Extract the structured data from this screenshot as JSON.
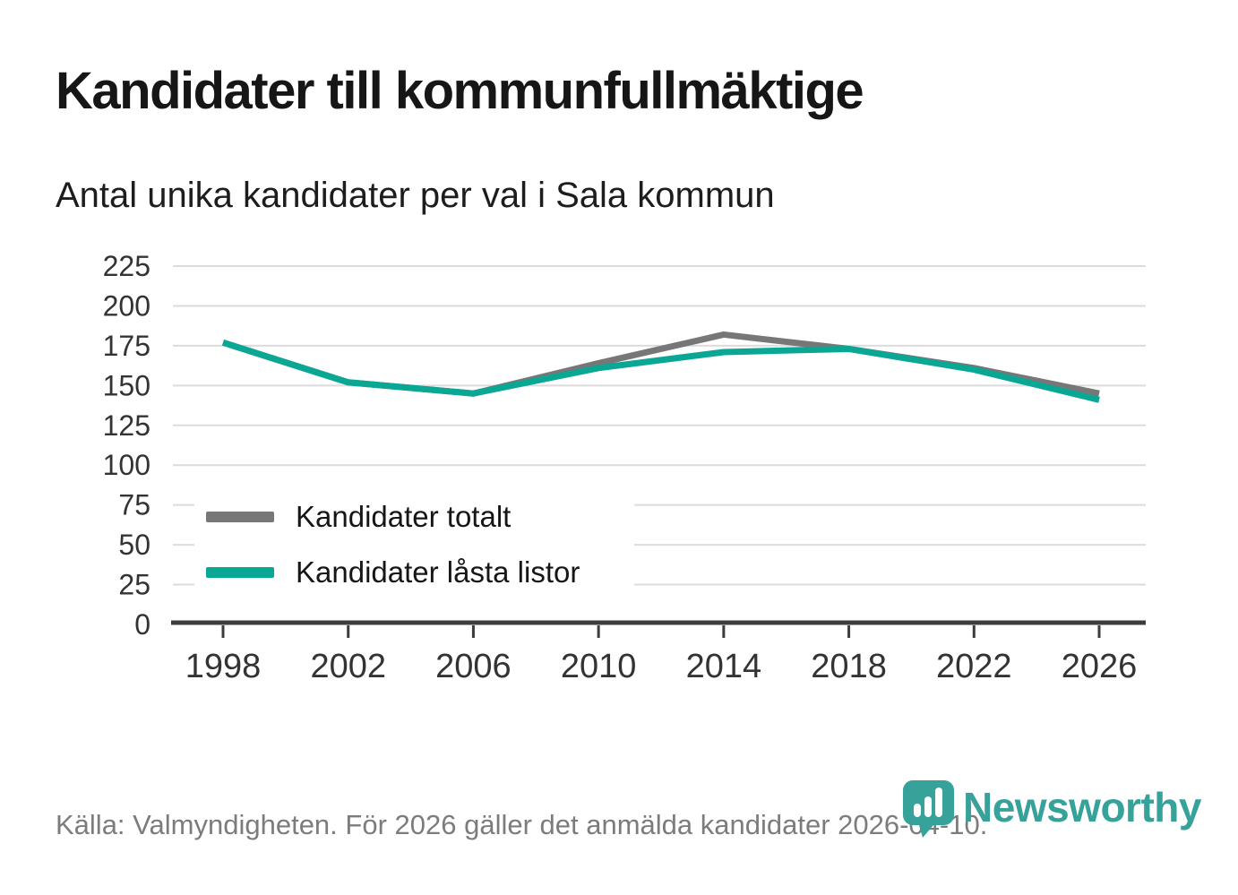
{
  "header": {
    "title": "Kandidater till kommunfullmäktige",
    "subtitle": "Antal unika kandidater per val i Sala kommun"
  },
  "chart_data": {
    "type": "line",
    "categories": [
      "1998",
      "2002",
      "2006",
      "2010",
      "2014",
      "2018",
      "2022",
      "2026"
    ],
    "series": [
      {
        "name": "Kandidater totalt",
        "color": "#777777",
        "values": [
          177,
          152,
          145,
          164,
          182,
          173,
          161,
          145
        ]
      },
      {
        "name": "Kandidater låsta listor",
        "color": "#0aa794",
        "values": [
          177,
          152,
          145,
          161,
          171,
          173,
          160,
          141
        ]
      }
    ],
    "title": "Kandidater till kommunfullmäktige",
    "subtitle": "Antal unika kandidater per val i Sala kommun",
    "xlabel": "",
    "ylabel": "",
    "ylim": [
      0,
      225
    ],
    "yticks": [
      0,
      25,
      50,
      75,
      100,
      125,
      150,
      175,
      200,
      225
    ],
    "grid": "horizontal",
    "legend_position": "inside-bottom-left"
  },
  "footer": {
    "source": "Källa: Valmyndigheten. För 2026 gäller det anmälda kandidater 2026-04-10.",
    "brand": "Newsworthy"
  },
  "colors": {
    "series_total": "#777777",
    "series_locked": "#0aa794",
    "gridline": "#dcdcdc",
    "axis": "#3c3c3c",
    "tick_label": "#333333",
    "title_text": "#161616",
    "footer_text": "#7c7c7c",
    "brand_teal": "#36a29a"
  }
}
